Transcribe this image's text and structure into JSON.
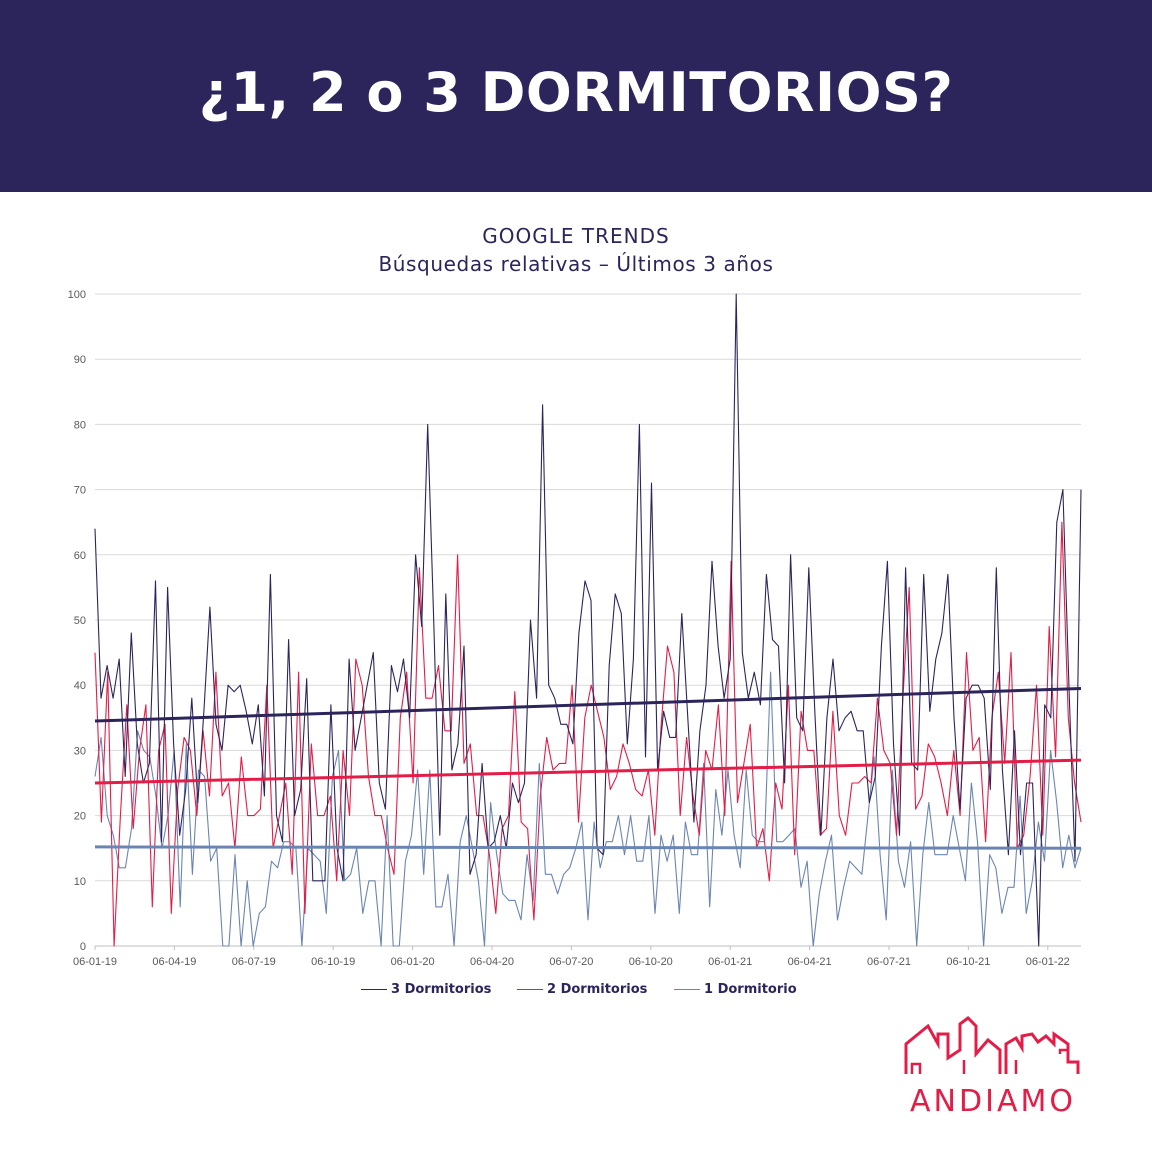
{
  "header": {
    "title": "¿1, 2 o 3 DORMITORIOS?"
  },
  "colors": {
    "header_bg": "#2c255c",
    "series_3": "#2c255c",
    "series_2": "#e31d47",
    "series_1": "#6b85b3",
    "grid": "#d9d9d9",
    "brand": "#e31d47"
  },
  "brand": {
    "name": "ANDIAMO",
    "logo_icon": "buildings-outline-icon"
  },
  "chart_data": {
    "type": "line",
    "title": "GOOGLE TRENDS",
    "subtitle": "Búsquedas relativas – Últimos 3 años",
    "ylim": [
      0,
      100
    ],
    "yticks": [
      0,
      10,
      20,
      30,
      40,
      50,
      60,
      70,
      80,
      90,
      100
    ],
    "x_tick_labels": [
      "06-01-19",
      "06-04-19",
      "06-07-19",
      "06-10-19",
      "06-01-20",
      "06-04-20",
      "06-07-20",
      "06-10-20",
      "06-01-21",
      "06-04-21",
      "06-07-21",
      "06-10-21",
      "06-01-22"
    ],
    "grid": true,
    "legend_position": "bottom",
    "series": [
      {
        "name": "3 Dormitorios",
        "trendline": [
          34.5,
          39.5
        ],
        "values": [
          64,
          38,
          43,
          38,
          44,
          26,
          48,
          31,
          25,
          28,
          56,
          16,
          55,
          31,
          17,
          24,
          38,
          22,
          36,
          52,
          34,
          30,
          40,
          39,
          40,
          36,
          31,
          37,
          23,
          57,
          20,
          16,
          47,
          20,
          24,
          41,
          10,
          10,
          10,
          37,
          15,
          10,
          44,
          30,
          35,
          40,
          45,
          25,
          21,
          43,
          39,
          44,
          35,
          60,
          49,
          80,
          50,
          17,
          54,
          27,
          31,
          46,
          11,
          14,
          28,
          15,
          16,
          20,
          15,
          25,
          22,
          25,
          50,
          38,
          83,
          40,
          38,
          34,
          34,
          31,
          48,
          56,
          53,
          15,
          14,
          43,
          54,
          51,
          31,
          44,
          80,
          29,
          71,
          27,
          36,
          32,
          32,
          51,
          35,
          19,
          33,
          40,
          59,
          46,
          38,
          44,
          100,
          45,
          38,
          42,
          37,
          57,
          47,
          46,
          25,
          60,
          35,
          33,
          58,
          36,
          17,
          35,
          44,
          33,
          35,
          36,
          33,
          33,
          22,
          26,
          46,
          59,
          31,
          17,
          58,
          28,
          27,
          57,
          36,
          44,
          48,
          57,
          35,
          21,
          38,
          40,
          40,
          38,
          24,
          58,
          27,
          14,
          33,
          14,
          25,
          25,
          0,
          37,
          35,
          65,
          70,
          40,
          13,
          70
        ]
      },
      {
        "name": "2 Dormitorios",
        "trendline": [
          25,
          28.5
        ],
        "values": [
          45,
          19,
          42,
          0,
          20,
          37,
          18,
          30,
          37,
          6,
          30,
          34,
          5,
          24,
          32,
          30,
          20,
          33,
          23,
          42,
          23,
          25,
          15,
          29,
          20,
          20,
          21,
          40,
          15,
          20,
          25,
          11,
          42,
          5,
          31,
          20,
          20,
          23,
          10,
          30,
          20,
          44,
          40,
          26,
          20,
          20,
          15,
          11,
          35,
          42,
          25,
          58,
          38,
          38,
          43,
          33,
          33,
          60,
          28,
          31,
          20,
          20,
          14,
          5,
          18,
          20,
          39,
          19,
          18,
          4,
          23,
          32,
          27,
          28,
          28,
          40,
          19,
          35,
          40,
          36,
          32,
          24,
          26,
          31,
          28,
          24,
          23,
          27,
          17,
          34,
          46,
          42,
          20,
          32,
          23,
          17,
          30,
          27,
          37,
          20,
          59,
          22,
          28,
          34,
          15,
          18,
          10,
          25,
          21,
          40,
          14,
          36,
          30,
          30,
          17,
          18,
          36,
          20,
          17,
          25,
          25,
          26,
          25,
          38,
          30,
          28,
          17,
          38,
          55,
          21,
          23,
          31,
          29,
          25,
          20,
          30,
          20,
          45,
          30,
          32,
          16,
          35,
          42,
          28,
          45,
          15,
          17,
          26,
          40,
          17,
          49,
          29,
          65,
          35,
          25,
          19
        ]
      },
      {
        "name": "1 Dormitorio",
        "trendline": [
          15.2,
          15.0
        ],
        "values": [
          26,
          32,
          20,
          17,
          12,
          12,
          18,
          33,
          30,
          29,
          23,
          15,
          20,
          30,
          6,
          31,
          11,
          27,
          26,
          13,
          15,
          0,
          0,
          14,
          0,
          10,
          0,
          5,
          6,
          13,
          12,
          16,
          16,
          15,
          0,
          15,
          14,
          13,
          5,
          26,
          30,
          10,
          11,
          15,
          5,
          10,
          10,
          0,
          20,
          0,
          0,
          13,
          17,
          27,
          11,
          27,
          6,
          6,
          11,
          0,
          16,
          20,
          15,
          10,
          0,
          22,
          14,
          8,
          7,
          7,
          4,
          14,
          7,
          28,
          11,
          11,
          8,
          11,
          12,
          15,
          19,
          4,
          19,
          12,
          16,
          16,
          20,
          14,
          20,
          13,
          13,
          20,
          5,
          17,
          13,
          17,
          5,
          19,
          14,
          14,
          28,
          6,
          24,
          17,
          27,
          17,
          12,
          27,
          17,
          16,
          16,
          42,
          16,
          16,
          17,
          18,
          9,
          13,
          0,
          8,
          13,
          17,
          4,
          9,
          13,
          12,
          11,
          20,
          29,
          14,
          4,
          27,
          13,
          9,
          16,
          0,
          14,
          22,
          14,
          14,
          14,
          20,
          15,
          10,
          25,
          16,
          0,
          14,
          12,
          5,
          9,
          9,
          23,
          5,
          10,
          19,
          13,
          30,
          22,
          12,
          17,
          12,
          15
        ]
      }
    ]
  }
}
